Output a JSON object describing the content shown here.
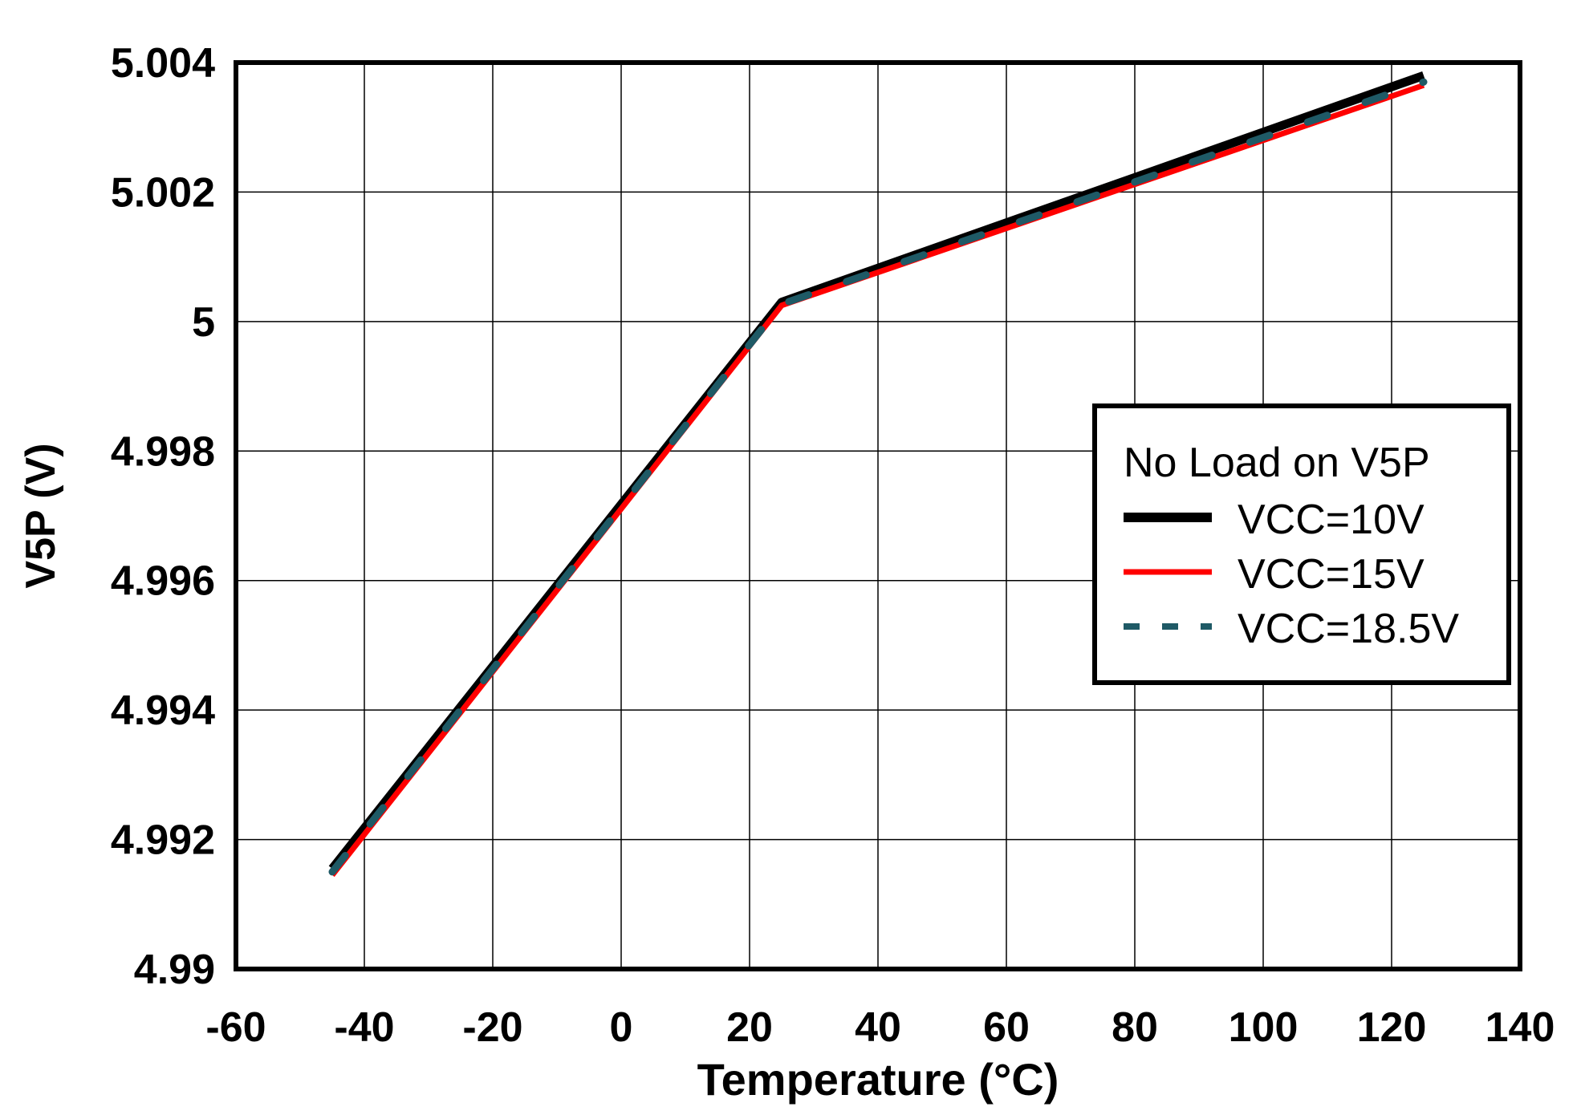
{
  "chart_data": {
    "type": "line",
    "xlabel": "Temperature (°C)",
    "ylabel": "V5P (V)",
    "xlim": [
      -60,
      140
    ],
    "ylim": [
      4.99,
      5.004
    ],
    "xticks": [
      -60,
      -40,
      -20,
      0,
      20,
      40,
      60,
      80,
      100,
      120,
      140
    ],
    "yticks": [
      4.99,
      4.992,
      4.994,
      4.996,
      4.998,
      5,
      5.002,
      5.004
    ],
    "ytick_labels": [
      "4.99",
      "4.992",
      "4.994",
      "4.996",
      "4.998",
      "5",
      "5.002",
      "5.004"
    ],
    "grid": true,
    "legend": {
      "title": "No Load on V5P",
      "placement": "right"
    },
    "series": [
      {
        "name": "VCC=10V",
        "color": "#000000",
        "style": "solid-thick",
        "x": [
          -45,
          25,
          125
        ],
        "y": [
          4.99155,
          5.0003,
          5.0038
        ]
      },
      {
        "name": "VCC=15V",
        "color": "#ff0000",
        "style": "solid",
        "x": [
          -45,
          25,
          125
        ],
        "y": [
          4.99145,
          5.00025,
          5.00365
        ]
      },
      {
        "name": "VCC=18.5V",
        "color": "#1f5a66",
        "style": "dashed",
        "x": [
          -45,
          25,
          125
        ],
        "y": [
          4.9915,
          5.00027,
          5.0037
        ]
      }
    ]
  }
}
